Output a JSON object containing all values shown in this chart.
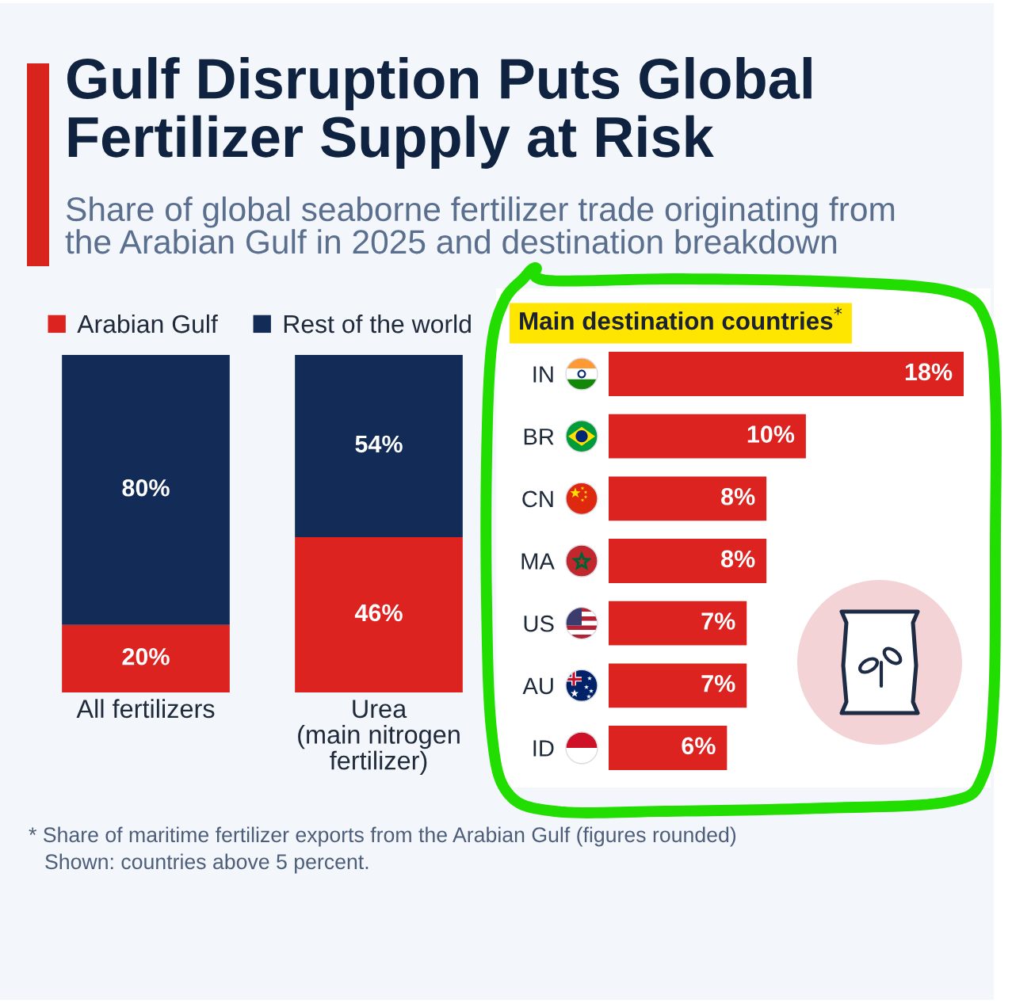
{
  "chart_data": [
    {
      "type": "bar",
      "stacked": true,
      "title": "Gulf Disruption Puts Global\nFertilizer Supply at Risk",
      "subtitle": "Share of global seaborne fertilizer trade originating from\nthe Arabian Gulf in 2025 and destination breakdown",
      "categories": [
        "All fertilizers",
        "Urea\n(main nitrogen\nfertilizer)"
      ],
      "series": [
        {
          "name": "Arabian Gulf",
          "color": "#dc2320",
          "values": [
            20,
            46
          ],
          "value_labels": [
            "20%",
            "46%"
          ]
        },
        {
          "name": "Rest of the world",
          "color": "#122c57",
          "values": [
            80,
            54
          ],
          "value_labels": [
            "80%",
            "54%"
          ]
        }
      ],
      "ylim": [
        0,
        100
      ],
      "tick_labels": "x",
      "legend": "top left"
    },
    {
      "type": "bar",
      "orientation": "horizontal",
      "title": "Main destination countries$^{*}$",
      "categories": [
        "IN",
        "BR",
        "CN",
        "MA",
        "US",
        "AU",
        "ID"
      ],
      "values": [
        18,
        10,
        8,
        8,
        7,
        7,
        6
      ],
      "color": "#dc2320",
      "value_labels": [
        "18%",
        "10%",
        "8%",
        "8%",
        "7%",
        "7%",
        "6%"
      ],
      "xlim": [
        0,
        18
      ],
      "tick_labels": "y",
      "annotations": [
        "* Share of maritime fertilizer exports from the Arabian Gulf (figures rounded)",
        "Shown: countries above 5 percent."
      ]
    }
  ]
}
